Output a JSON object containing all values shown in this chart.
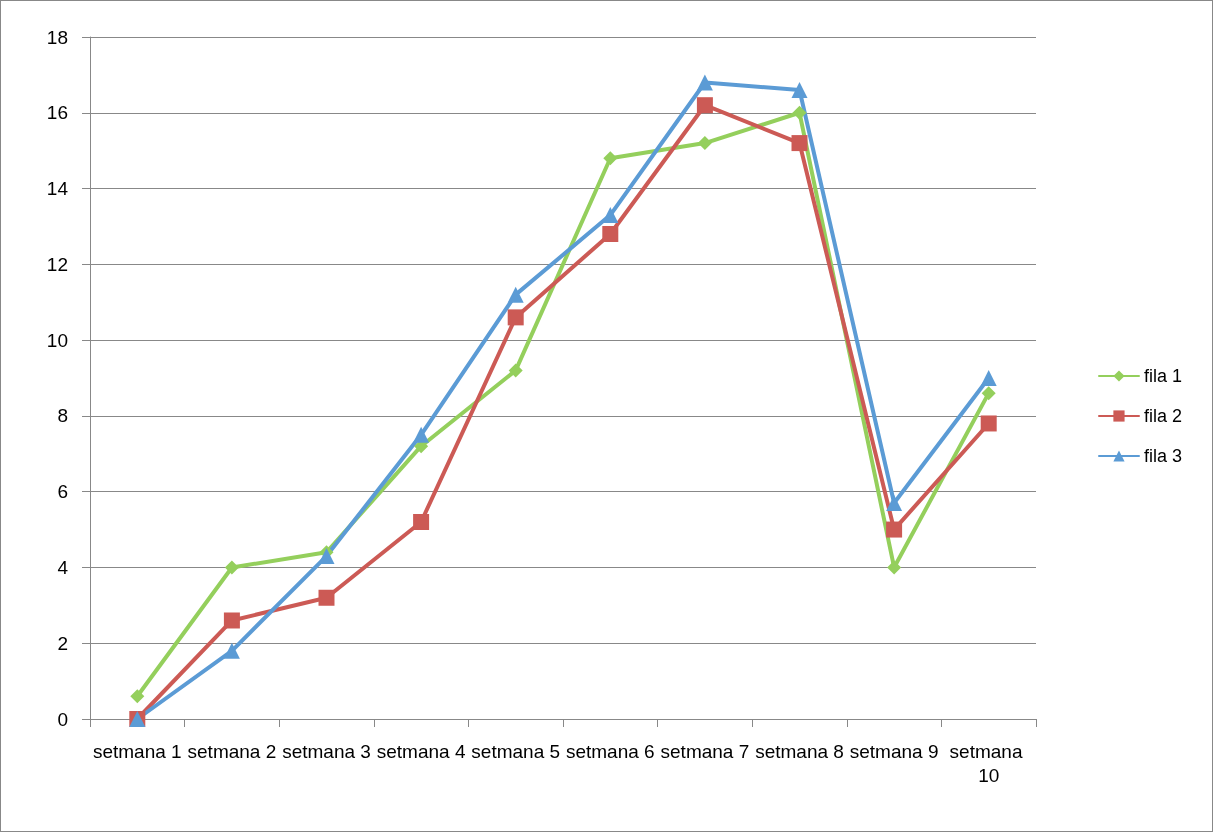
{
  "chart_data": {
    "type": "line",
    "categories": [
      "setmana 1",
      "setmana 2",
      "setmana 3",
      "setmana 4",
      "setmana 5",
      "setmana 6",
      "setmana 7",
      "setmana 8",
      "setmana 9",
      "setmana 10"
    ],
    "series": [
      {
        "name": "fila 1",
        "color": "#94cf5c",
        "marker": "diamond",
        "values": [
          0.6,
          4.0,
          4.4,
          7.2,
          9.2,
          14.8,
          15.2,
          16.0,
          4.0,
          8.6
        ]
      },
      {
        "name": "fila 2",
        "color": "#cc5a55",
        "marker": "square",
        "values": [
          0,
          2.6,
          3.2,
          5.2,
          10.6,
          12.8,
          16.2,
          15.2,
          5.0,
          7.8
        ]
      },
      {
        "name": "fila 3",
        "color": "#5b9bd5",
        "marker": "triangle",
        "values": [
          0,
          1.8,
          4.3,
          7.5,
          11.2,
          13.3,
          16.8,
          16.6,
          5.7,
          9.0
        ]
      }
    ],
    "ylim": [
      0,
      18
    ],
    "yticks": [
      0,
      2,
      4,
      6,
      8,
      10,
      12,
      14,
      16,
      18
    ],
    "grid": "y",
    "legend": "right",
    "line_style": "solid"
  }
}
